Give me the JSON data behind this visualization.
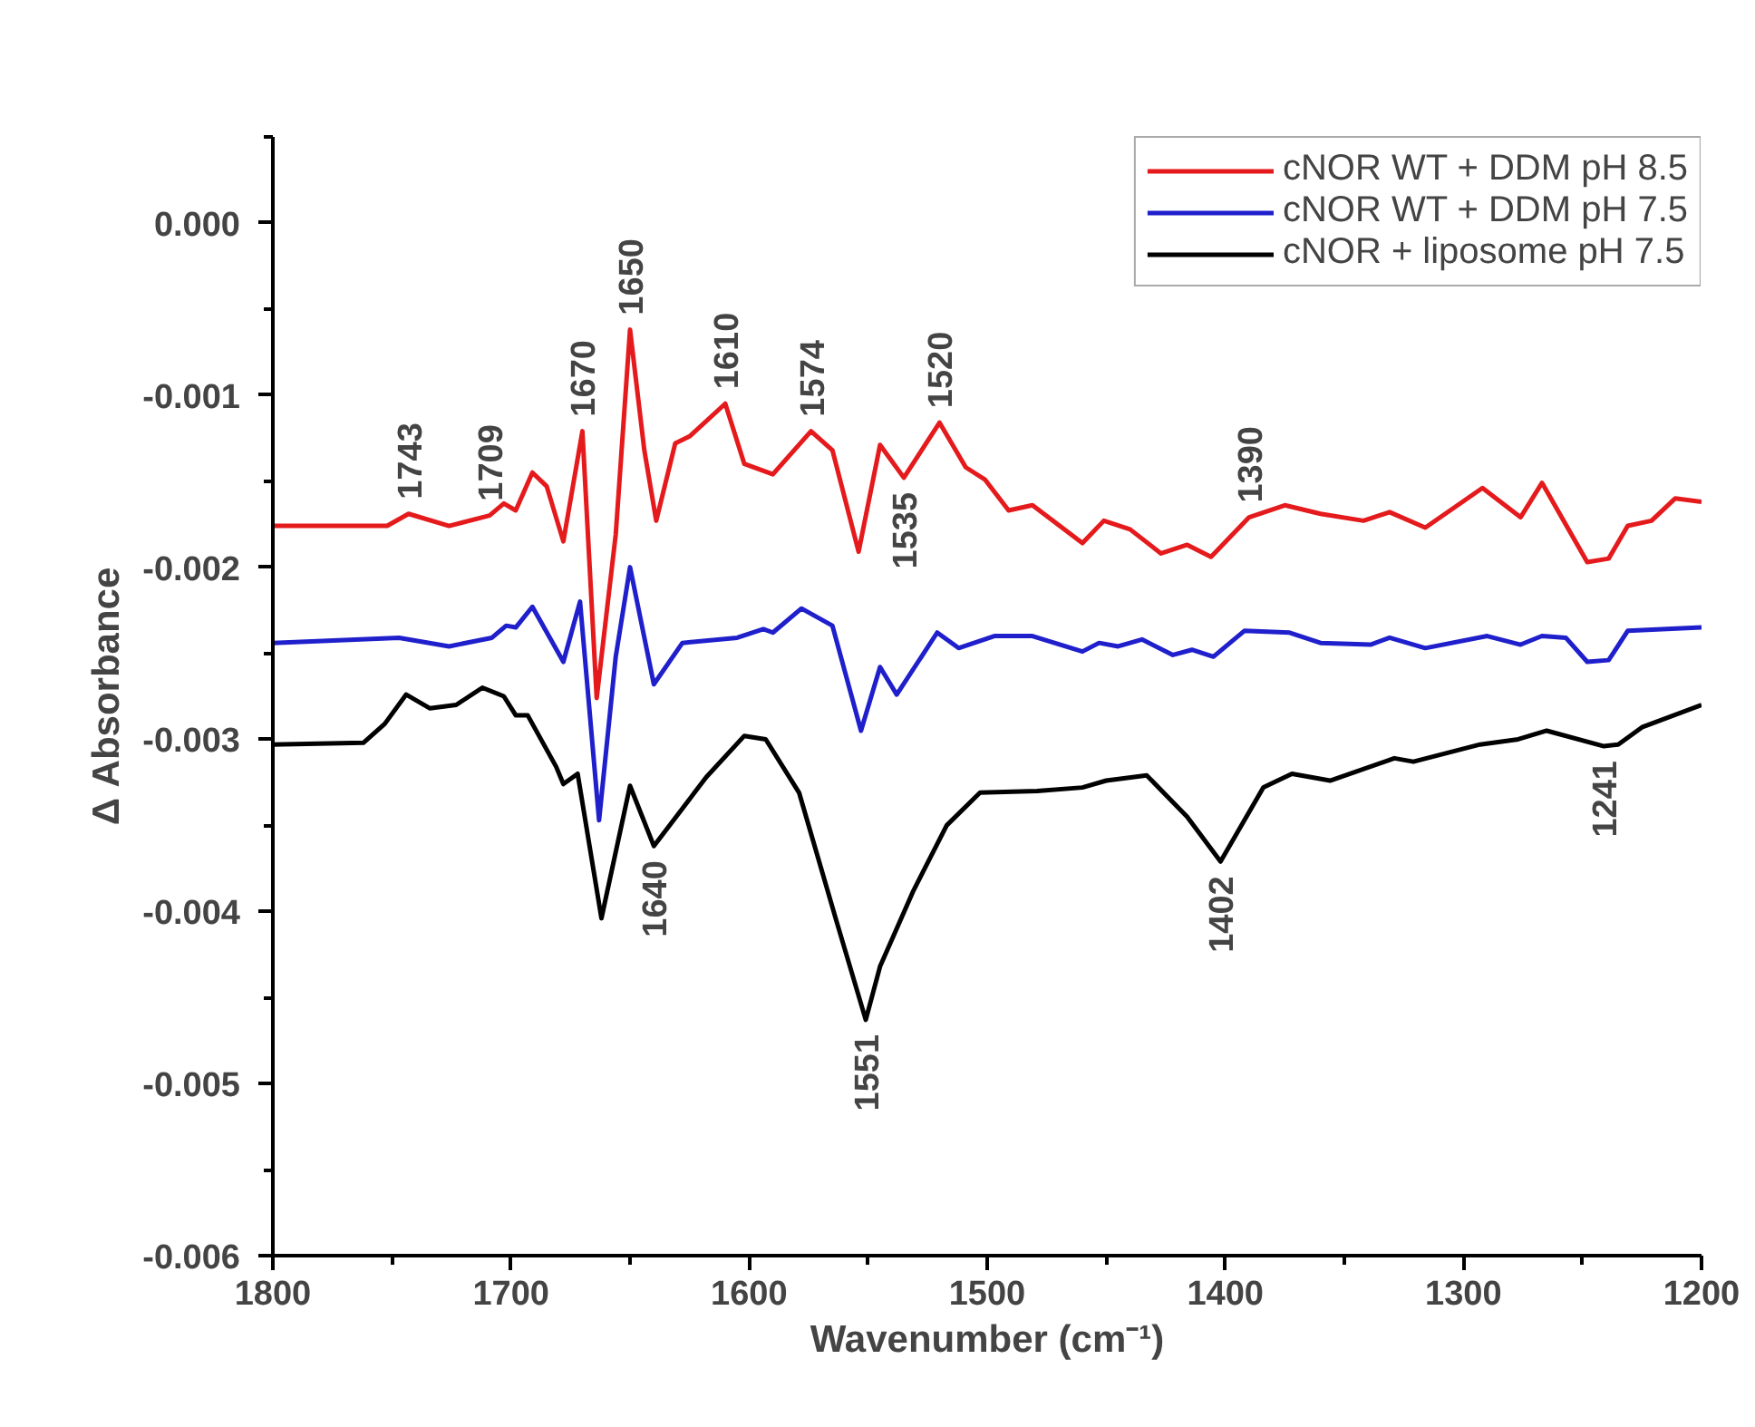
{
  "chart_data": {
    "type": "line",
    "xlabel": "Wavenumber (cm⁻¹)",
    "ylabel": "Δ Absorbance",
    "xlim": [
      1800,
      1200
    ],
    "ylim": [
      -0.006,
      0.0005
    ],
    "xticks": [
      1800,
      1700,
      1600,
      1500,
      1400,
      1300,
      1200
    ],
    "yticks": [
      {
        "value": 0,
        "label": "0.000"
      },
      -0.001,
      -0.002,
      -0.003,
      -0.004,
      -0.005,
      -0.006
    ],
    "grid": false,
    "legend": "top right",
    "marker": "none",
    "line_style": "solid",
    "series": [
      {
        "name": "cNOR WT + DDM pH 8.5",
        "color": "#e41a1c",
        "x": [
          1800,
          1752,
          1743,
          1726,
          1709,
          1703,
          1698,
          1691,
          1685,
          1678,
          1670,
          1664,
          1656,
          1650,
          1644,
          1639,
          1631,
          1625,
          1610,
          1602,
          1590,
          1574,
          1565,
          1554,
          1545,
          1535,
          1520,
          1509,
          1501,
          1491,
          1481,
          1460,
          1451,
          1440,
          1427,
          1416,
          1406,
          1390,
          1375,
          1360,
          1342,
          1331,
          1316,
          1292,
          1276,
          1267,
          1248,
          1239,
          1231,
          1221,
          1211,
          1200
        ],
        "values": [
          -0.00176,
          -0.00176,
          -0.00169,
          -0.00176,
          -0.0017,
          -0.00163,
          -0.00167,
          -0.00145,
          -0.00153,
          -0.00185,
          -0.00121,
          -0.00276,
          -0.00181,
          -0.00062,
          -0.00132,
          -0.00173,
          -0.00128,
          -0.00124,
          -0.00105,
          -0.0014,
          -0.00146,
          -0.00121,
          -0.00132,
          -0.00191,
          -0.00129,
          -0.00148,
          -0.00116,
          -0.00142,
          -0.00149,
          -0.00167,
          -0.00164,
          -0.00186,
          -0.00173,
          -0.00178,
          -0.00192,
          -0.00187,
          -0.00194,
          -0.00171,
          -0.00164,
          -0.00169,
          -0.00173,
          -0.00168,
          -0.00177,
          -0.00154,
          -0.00171,
          -0.00151,
          -0.00197,
          -0.00195,
          -0.00176,
          -0.00173,
          -0.0016,
          -0.00162
        ]
      },
      {
        "name": "cNOR WT + DDM pH 7.5",
        "color": "#1f1fcc",
        "x": [
          1800,
          1747,
          1726,
          1708,
          1702,
          1698,
          1691,
          1678,
          1671,
          1663,
          1656,
          1650,
          1640,
          1628,
          1605,
          1594,
          1590,
          1578,
          1565,
          1553,
          1545,
          1538,
          1521,
          1512,
          1497,
          1481,
          1460,
          1453,
          1445,
          1435,
          1422,
          1414,
          1405,
          1392,
          1373,
          1360,
          1339,
          1331,
          1316,
          1290,
          1276,
          1267,
          1257,
          1248,
          1239,
          1231,
          1200
        ],
        "values": [
          -0.00244,
          -0.00241,
          -0.00246,
          -0.00241,
          -0.00234,
          -0.00235,
          -0.00223,
          -0.00255,
          -0.0022,
          -0.00347,
          -0.00252,
          -0.002,
          -0.00268,
          -0.00244,
          -0.00241,
          -0.00236,
          -0.00238,
          -0.00224,
          -0.00234,
          -0.00295,
          -0.00258,
          -0.00274,
          -0.00238,
          -0.00247,
          -0.0024,
          -0.0024,
          -0.00249,
          -0.00244,
          -0.00246,
          -0.00242,
          -0.00251,
          -0.00248,
          -0.00252,
          -0.00237,
          -0.00238,
          -0.00244,
          -0.00245,
          -0.00241,
          -0.00247,
          -0.0024,
          -0.00245,
          -0.0024,
          -0.00241,
          -0.00255,
          -0.00254,
          -0.00237,
          -0.00235
        ]
      },
      {
        "name": "cNOR + liposome pH 7.5",
        "color": "#000000",
        "x": [
          1800,
          1762,
          1753,
          1744,
          1734,
          1723,
          1712,
          1703,
          1698,
          1693,
          1681,
          1678,
          1672,
          1662,
          1650,
          1640,
          1618,
          1602,
          1593,
          1579,
          1563,
          1551,
          1545,
          1531,
          1517,
          1503,
          1479,
          1460,
          1450,
          1433,
          1416,
          1402,
          1384,
          1372,
          1356,
          1329,
          1321,
          1293,
          1277,
          1265,
          1241,
          1235,
          1225,
          1200
        ],
        "values": [
          -0.00303,
          -0.00302,
          -0.00291,
          -0.00274,
          -0.00282,
          -0.0028,
          -0.0027,
          -0.00275,
          -0.00286,
          -0.00286,
          -0.00316,
          -0.00326,
          -0.0032,
          -0.00404,
          -0.00327,
          -0.00362,
          -0.00322,
          -0.00298,
          -0.003,
          -0.00331,
          -0.00407,
          -0.00463,
          -0.00432,
          -0.00388,
          -0.0035,
          -0.00331,
          -0.0033,
          -0.00328,
          -0.00324,
          -0.00321,
          -0.00345,
          -0.00371,
          -0.00328,
          -0.0032,
          -0.00324,
          -0.00311,
          -0.00313,
          -0.00303,
          -0.003,
          -0.00295,
          -0.00304,
          -0.00303,
          -0.00293,
          -0.0028
        ]
      }
    ],
    "annotations": [
      {
        "text": "1743",
        "x": 1743,
        "y": -0.00169
      },
      {
        "text": "1709",
        "x": 1709,
        "y": -0.0017
      },
      {
        "text": "1670",
        "x": 1670,
        "y": -0.00121
      },
      {
        "text": "1650",
        "x": 1650,
        "y": -0.00062
      },
      {
        "text": "1610",
        "x": 1610,
        "y": -0.00105
      },
      {
        "text": "1574",
        "x": 1574,
        "y": -0.00121
      },
      {
        "text": "1520",
        "x": 1520,
        "y": -0.00116
      },
      {
        "text": "1535",
        "x": 1535,
        "y": -0.00148
      },
      {
        "text": "1390",
        "x": 1390,
        "y": -0.00171
      },
      {
        "text": "1640",
        "x": 1640,
        "y": -0.00362
      },
      {
        "text": "1551",
        "x": 1551,
        "y": -0.00463
      },
      {
        "text": "1402",
        "x": 1402,
        "y": -0.00371
      },
      {
        "text": "1241",
        "x": 1241,
        "y": -0.00304
      }
    ]
  }
}
